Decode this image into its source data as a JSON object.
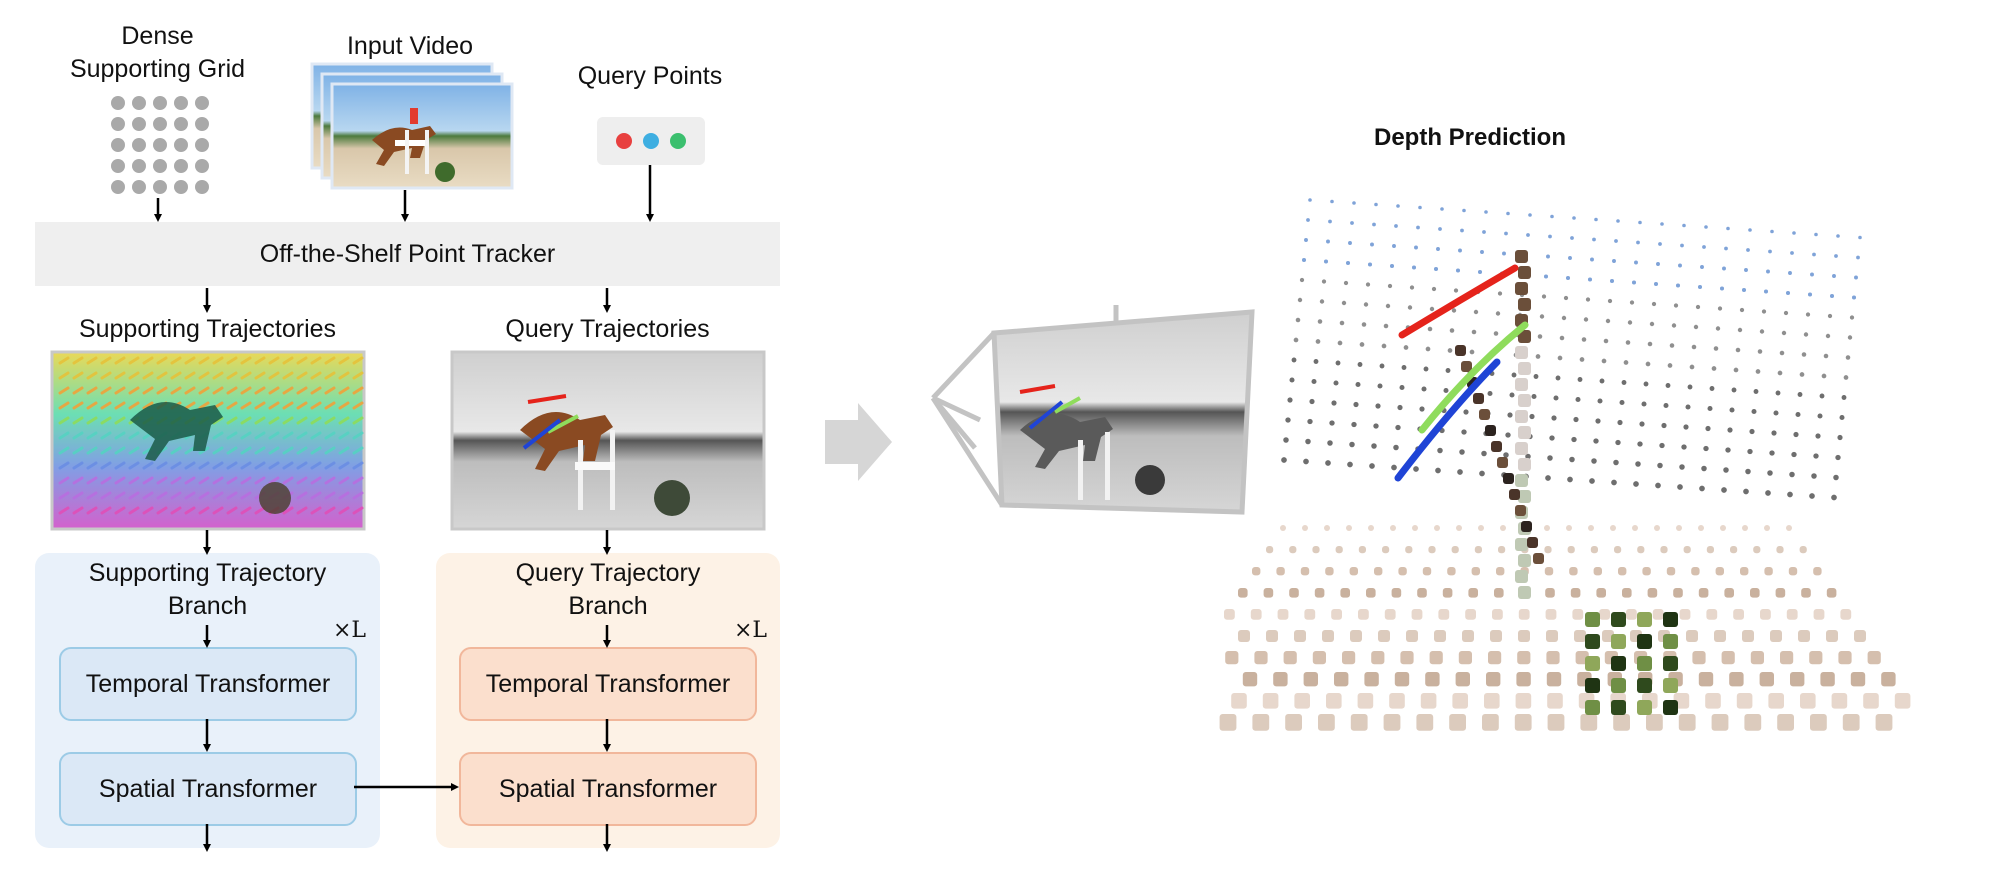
{
  "inputs": {
    "grid_title": "Dense\nSupporting Grid",
    "video_title": "Input Video",
    "query_title": "Query Points"
  },
  "tracker": {
    "label": "Off-the-Shelf Point Tracker"
  },
  "trajectories": {
    "supporting_title": "Supporting Trajectories",
    "query_title": "Query Trajectories"
  },
  "supporting_branch": {
    "title": "Supporting Trajectory\nBranch",
    "repeat": "×L",
    "temporal": "Temporal Transformer",
    "spatial": "Spatial Transformer"
  },
  "query_branch": {
    "title": "Query Trajectory\nBranch",
    "repeat": "×L",
    "temporal": "Temporal Transformer",
    "spatial": "Spatial Transformer"
  },
  "depth": {
    "title": "Depth Prediction"
  },
  "colors": {
    "query_red": "#e8403f",
    "query_blue": "#3eaee1",
    "query_green": "#3bbf6e",
    "track_red": "#e5231b",
    "track_green": "#8fdc5c",
    "track_blue": "#1f44d6"
  }
}
